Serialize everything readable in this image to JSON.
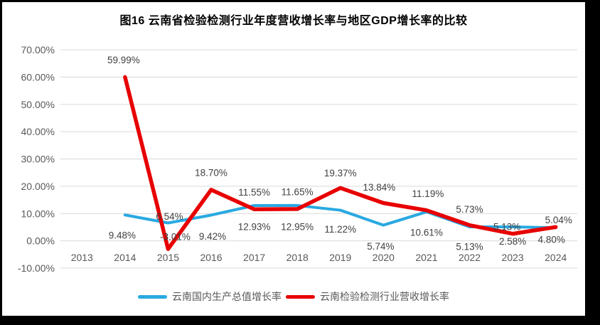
{
  "title": "图16  云南省检验检测行业年度营收增长率与地区GDP增长率的比较",
  "colors": {
    "background_outer": "#000000",
    "background_chart": "#ffffff",
    "gridline": "#d9d9d9",
    "axis_text": "#595959",
    "data_label_text": "#404040",
    "gdp_line": "#29a9e1",
    "industry_line": "#e80000"
  },
  "chart_data": {
    "type": "line",
    "title": "图16  云南省检验检测行业年度营收增长率与地区GDP增长率的比较",
    "categories": [
      "2013",
      "2014",
      "2015",
      "2016",
      "2017",
      "2018",
      "2019",
      "2020",
      "2021",
      "2022",
      "2023",
      "2024"
    ],
    "y_axis": {
      "min": -10,
      "max": 70,
      "step": 10,
      "tick_labels": [
        "70.00%",
        "60.00%",
        "50.00%",
        "40.00%",
        "30.00%",
        "20.00%",
        "10.00%",
        "0.00%",
        "-10.00%"
      ]
    },
    "grid": true,
    "legend_position": "bottom",
    "series": [
      {
        "name": "云南国内生产总值增长率",
        "color": "#29a9e1",
        "line_width": 4,
        "values": [
          null,
          9.48,
          6.54,
          9.42,
          12.93,
          12.95,
          11.22,
          5.74,
          10.61,
          5.13,
          5.13,
          4.8
        ],
        "labels": [
          "",
          "9.48%",
          "6.54%",
          "9.42%",
          "12.93%",
          "12.95%",
          "11.22%",
          "5.74%",
          "10.61%",
          "5.13%",
          "5.13%",
          "4.80%"
        ],
        "label_dy": [
          0,
          29,
          -9,
          30,
          30,
          30,
          27,
          30,
          29,
          28,
          0,
          17
        ],
        "label_dx": [
          0,
          -4,
          2,
          2,
          0,
          0,
          0,
          -4,
          0,
          0,
          -8,
          -6
        ]
      },
      {
        "name": "云南检验检测行业营收增长率",
        "color": "#e80000",
        "line_width": 5.5,
        "values": [
          null,
          59.99,
          -3.01,
          18.7,
          11.55,
          11.65,
          19.37,
          13.84,
          11.19,
          5.73,
          2.58,
          5.04
        ],
        "labels": [
          "",
          "59.99%",
          "-3.01%",
          "18.70%",
          "11.55%",
          "11.65%",
          "19.37%",
          "13.84%",
          "11.19%",
          "5.73%",
          "2.58%",
          "5.04%"
        ],
        "label_dy": [
          0,
          -24,
          -17,
          -24,
          -24,
          -24,
          -21,
          -22,
          -23,
          -22,
          11,
          -10
        ],
        "label_dx": [
          0,
          -2,
          10,
          0,
          0,
          0,
          0,
          -6,
          2,
          0,
          0,
          4
        ]
      }
    ]
  }
}
